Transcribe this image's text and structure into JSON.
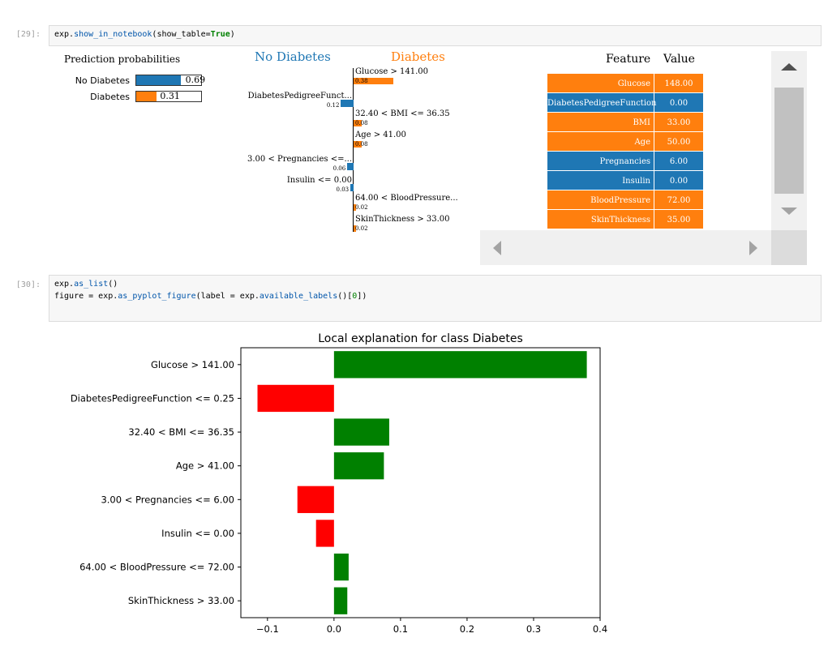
{
  "cells": [
    {
      "prompt": "[29]:",
      "code_parts": [
        "exp.",
        "show_in_notebook",
        "(show_table=",
        "True",
        ")"
      ]
    },
    {
      "prompt": "[30]:",
      "line1_parts": [
        "exp.",
        "as_list",
        "()"
      ],
      "line2_parts": [
        "figure = exp.",
        "as_pyplot_figure",
        "(label = exp.",
        "available_labels",
        "()[",
        "0",
        "])"
      ]
    }
  ],
  "lime": {
    "pred_title": "Prediction probabilities",
    "pred": [
      {
        "label": "No Diabetes",
        "value": 0.69,
        "text": "0.69"
      },
      {
        "label": "Diabetes",
        "value": 0.31,
        "text": "0.31"
      }
    ],
    "class_left": "No Diabetes",
    "class_right": "Diabetes",
    "features": [
      {
        "label": "Glucose > 141.00",
        "weight": 0.38,
        "text": "0.38",
        "side": "right"
      },
      {
        "label": "DiabetesPedigreeFunct...",
        "weight": 0.12,
        "text": "0.12",
        "side": "left"
      },
      {
        "label": "32.40 < BMI <= 36.35",
        "weight": 0.08,
        "text": "0.08",
        "side": "right"
      },
      {
        "label": "Age > 41.00",
        "weight": 0.08,
        "text": "0.08",
        "side": "right"
      },
      {
        "label": "3.00 < Pregnancies <=...",
        "weight": 0.06,
        "text": "0.06",
        "side": "left"
      },
      {
        "label": "Insulin <= 0.00",
        "weight": 0.03,
        "text": "0.03",
        "side": "left"
      },
      {
        "label": "64.00 < BloodPressure...",
        "weight": 0.02,
        "text": "0.02",
        "side": "right"
      },
      {
        "label": "SkinThickness > 33.00",
        "weight": 0.02,
        "text": "0.02",
        "side": "right"
      }
    ],
    "table": {
      "header_feature": "Feature",
      "header_value": "Value",
      "rows": [
        {
          "feature": "Glucose",
          "value": "148.00",
          "color": "#ff7f0e"
        },
        {
          "feature": "DiabetesPedigreeFunction",
          "value": "0.00",
          "color": "#1f77b4"
        },
        {
          "feature": "BMI",
          "value": "33.00",
          "color": "#ff7f0e"
        },
        {
          "feature": "Age",
          "value": "50.00",
          "color": "#ff7f0e"
        },
        {
          "feature": "Pregnancies",
          "value": "6.00",
          "color": "#1f77b4"
        },
        {
          "feature": "Insulin",
          "value": "0.00",
          "color": "#1f77b4"
        },
        {
          "feature": "BloodPressure",
          "value": "72.00",
          "color": "#ff7f0e"
        },
        {
          "feature": "SkinThickness",
          "value": "35.00",
          "color": "#ff7f0e"
        }
      ]
    },
    "colors": {
      "no_diabetes": "#1f77b4",
      "diabetes": "#ff7f0e"
    }
  },
  "chart_data": {
    "type": "bar",
    "orientation": "horizontal",
    "title": "Local explanation for class Diabetes",
    "categories": [
      "Glucose > 141.00",
      "DiabetesPedigreeFunction <= 0.25",
      "32.40 < BMI <= 36.35",
      "Age > 41.00",
      "3.00 < Pregnancies <= 6.00",
      "Insulin <= 0.00",
      "64.00 < BloodPressure <= 72.00",
      "SkinThickness > 33.00"
    ],
    "values": [
      0.38,
      -0.115,
      0.083,
      0.075,
      -0.055,
      -0.027,
      0.022,
      0.02
    ],
    "xticks": [
      "−0.1",
      "0.0",
      "0.1",
      "0.2",
      "0.3",
      "0.4"
    ],
    "xtick_values": [
      -0.1,
      0.0,
      0.1,
      0.2,
      0.3,
      0.4
    ],
    "xlim": [
      -0.14,
      0.4
    ],
    "positive_color": "#008000",
    "negative_color": "#ff0000",
    "grid": false
  }
}
